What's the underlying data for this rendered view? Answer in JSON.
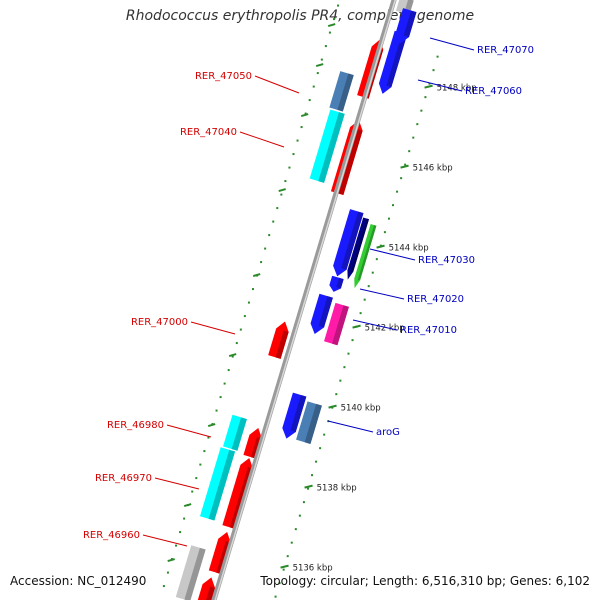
{
  "title": "Rhodococcus erythropolis PR4, complete genome",
  "footer": {
    "accession": "Accession: NC_012490",
    "summary": "Topology: circular; Length: 6,516,310 bp; Genes: 6,102"
  },
  "colors": {
    "backbone": "#8c8c8c",
    "tick": "#2a8a2a",
    "forward_label": "#d40000",
    "reverse_label": "#0000c0",
    "red": "#ff0000",
    "blue": "#1a1aff",
    "steel": "#4a7fb5",
    "cyan": "#00ffff",
    "navy": "#000080",
    "green": "#33cc33",
    "magenta": "#ff1aa8",
    "gray": "#c8c8c8"
  },
  "scale_labels": [
    "5148 kbp",
    "5146 kbp",
    "5144 kbp",
    "5142 kbp",
    "5140 kbp",
    "5138 kbp",
    "5136 kbp"
  ],
  "forward_gene_labels": [
    "RER_47050",
    "RER_47040",
    "RER_47000",
    "RER_46980",
    "RER_46970",
    "RER_46960"
  ],
  "reverse_gene_labels": [
    "RER_47070",
    "RER_47060",
    "RER_47030",
    "RER_47020",
    "RER_47010",
    "aroG"
  ]
}
